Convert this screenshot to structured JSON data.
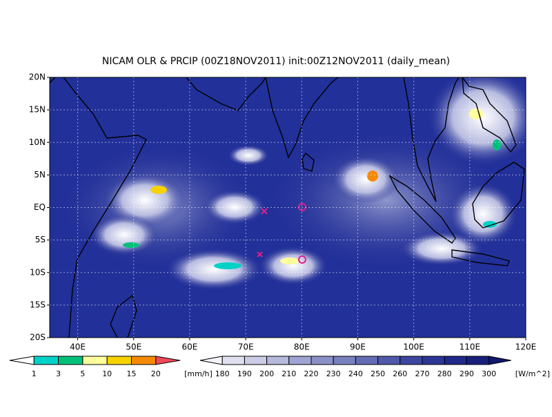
{
  "title": "NICAM OLR & PRCIP (00Z18NOV2011) init:00Z12NOV2011 (daily_mean)",
  "map": {
    "xlim": [
      35,
      120
    ],
    "ylim": [
      -20,
      20
    ],
    "lon_ticks": [
      {
        "value": 40,
        "label": "40E"
      },
      {
        "value": 50,
        "label": "50E"
      },
      {
        "value": 60,
        "label": "60E"
      },
      {
        "value": 70,
        "label": "70E"
      },
      {
        "value": 80,
        "label": "80E"
      },
      {
        "value": 90,
        "label": "90E"
      },
      {
        "value": 100,
        "label": "100E"
      },
      {
        "value": 110,
        "label": "110E"
      },
      {
        "value": 120,
        "label": "120E"
      }
    ],
    "lat_ticks": [
      {
        "value": 20,
        "label": "20N"
      },
      {
        "value": 15,
        "label": "15N"
      },
      {
        "value": 10,
        "label": "10N"
      },
      {
        "value": 5,
        "label": "5N"
      },
      {
        "value": 0,
        "label": "EQ"
      },
      {
        "value": -5,
        "label": "5S"
      },
      {
        "value": -10,
        "label": "10S"
      },
      {
        "value": -15,
        "label": "15S"
      },
      {
        "value": -20,
        "label": "20S"
      }
    ],
    "grid": true
  },
  "precip_colorbar": {
    "ticks": [
      1,
      3,
      5,
      10,
      15,
      20
    ],
    "units": "[mm/h]",
    "colors": [
      "#ffffff",
      "#00d2c8",
      "#00c07c",
      "#ffff9c",
      "#f5d200",
      "#f58a00",
      "#f04858"
    ]
  },
  "olr_colorbar": {
    "ticks": [
      180,
      190,
      200,
      210,
      220,
      230,
      240,
      250,
      260,
      270,
      280,
      290,
      300
    ],
    "units": "[W/m^2]",
    "colors": [
      "#f4f4fa",
      "#e0e0f0",
      "#cccce6",
      "#b6b8dc",
      "#a0a4d2",
      "#8c90c8",
      "#7880be",
      "#646cb4",
      "#5058aa",
      "#3c46a0",
      "#2c3696",
      "#20288a",
      "#18207e",
      "#101870"
    ]
  }
}
